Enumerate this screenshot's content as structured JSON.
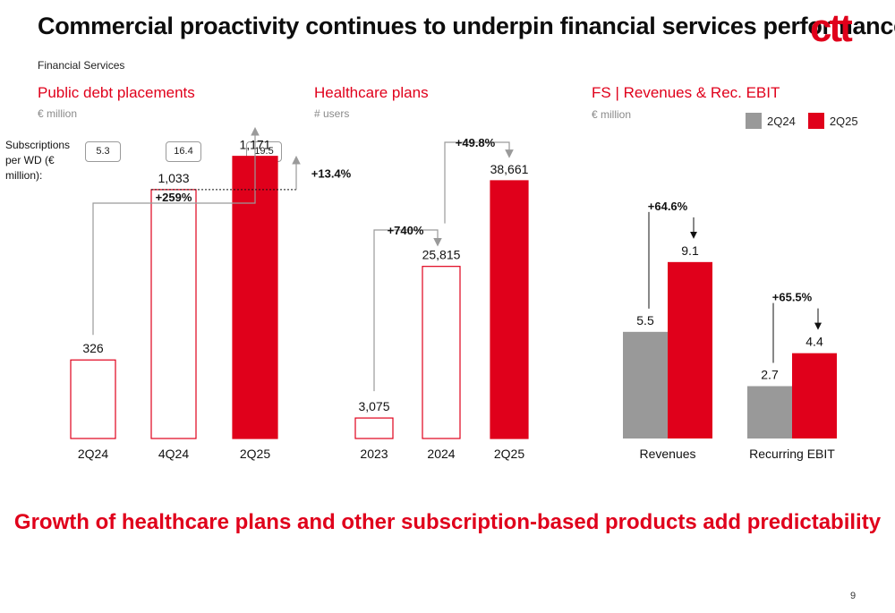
{
  "title": "Commercial proactivity continues to underpin financial services performance",
  "logo_text": "ctt",
  "section_label": "Financial Services",
  "subscriptions": {
    "label": "Subscriptions per WD (€ million):",
    "values": [
      "5.3",
      "16.4",
      "19.5"
    ]
  },
  "legend": [
    {
      "name": "2Q24",
      "color": "#999999"
    },
    {
      "name": "2Q25",
      "color": "#e0001b"
    }
  ],
  "bottom_message": "Growth of healthcare plans and other subscription-based products add predictability",
  "page_number": "9",
  "colors": {
    "accent": "#e0001b",
    "grey": "#999999",
    "arrow": "#9a9a9a"
  },
  "chart_data": [
    {
      "type": "bar",
      "title": "Public debt placements",
      "unit": "€ million",
      "categories": [
        "2Q24",
        "4Q24",
        "2Q25"
      ],
      "values": [
        326,
        1033,
        1171
      ],
      "value_labels": [
        "326",
        "1,033",
        "1,171"
      ],
      "bar_styles": [
        "outline",
        "outline",
        "filled"
      ],
      "ylim": [
        0,
        1300
      ],
      "annotations": [
        {
          "text": "+259%",
          "from": "2Q24",
          "to": "2Q25"
        },
        {
          "text": "+13.4%",
          "from": "4Q24",
          "to": "2Q25"
        }
      ]
    },
    {
      "type": "bar",
      "title": "Healthcare plans",
      "unit": "# users",
      "categories": [
        "2023",
        "2024",
        "2Q25"
      ],
      "values": [
        3075,
        25815,
        38661
      ],
      "value_labels": [
        "3,075",
        "25,815",
        "38,661"
      ],
      "bar_styles": [
        "outline",
        "outline",
        "filled"
      ],
      "ylim": [
        0,
        40000
      ],
      "annotations": [
        {
          "text": "+740%",
          "from": "2023",
          "to": "2024"
        },
        {
          "text": "+49.8%",
          "from": "2024",
          "to": "2Q25"
        }
      ]
    },
    {
      "type": "bar",
      "title": "FS | Revenues & Rec. EBIT",
      "unit": "€ million",
      "categories": [
        "Revenues",
        "Recurring EBIT"
      ],
      "series": [
        {
          "name": "2Q24",
          "values": [
            5.5,
            2.7
          ],
          "value_labels": [
            "5.5",
            "2.7"
          ]
        },
        {
          "name": "2Q25",
          "values": [
            9.1,
            4.4
          ],
          "value_labels": [
            "9.1",
            "4.4"
          ]
        }
      ],
      "ylim": [
        0,
        12
      ],
      "annotations": [
        {
          "text": "+64.6%",
          "category": "Revenues"
        },
        {
          "text": "+65.5%",
          "category": "Recurring EBIT"
        }
      ]
    }
  ]
}
